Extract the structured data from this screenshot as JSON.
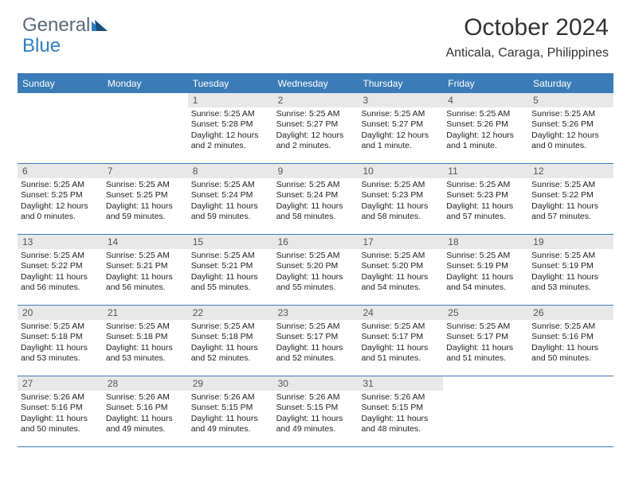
{
  "brand": {
    "part1": "General",
    "part2": "Blue"
  },
  "title": "October 2024",
  "location": "Anticala, Caraga, Philippines",
  "colors": {
    "header_bg": "#3b7cb8",
    "header_text": "#ffffff",
    "daynum_bg": "#e8e8e8",
    "body_text": "#222222",
    "border": "#3b7cb8",
    "logo_gray": "#5a6a7a",
    "logo_blue": "#2f7fbf"
  },
  "day_headers": [
    "Sunday",
    "Monday",
    "Tuesday",
    "Wednesday",
    "Thursday",
    "Friday",
    "Saturday"
  ],
  "weeks": [
    [
      {
        "n": "",
        "sr": "",
        "ss": "",
        "dl": ""
      },
      {
        "n": "",
        "sr": "",
        "ss": "",
        "dl": ""
      },
      {
        "n": "1",
        "sr": "Sunrise: 5:25 AM",
        "ss": "Sunset: 5:28 PM",
        "dl": "Daylight: 12 hours and 2 minutes."
      },
      {
        "n": "2",
        "sr": "Sunrise: 5:25 AM",
        "ss": "Sunset: 5:27 PM",
        "dl": "Daylight: 12 hours and 2 minutes."
      },
      {
        "n": "3",
        "sr": "Sunrise: 5:25 AM",
        "ss": "Sunset: 5:27 PM",
        "dl": "Daylight: 12 hours and 1 minute."
      },
      {
        "n": "4",
        "sr": "Sunrise: 5:25 AM",
        "ss": "Sunset: 5:26 PM",
        "dl": "Daylight: 12 hours and 1 minute."
      },
      {
        "n": "5",
        "sr": "Sunrise: 5:25 AM",
        "ss": "Sunset: 5:26 PM",
        "dl": "Daylight: 12 hours and 0 minutes."
      }
    ],
    [
      {
        "n": "6",
        "sr": "Sunrise: 5:25 AM",
        "ss": "Sunset: 5:25 PM",
        "dl": "Daylight: 12 hours and 0 minutes."
      },
      {
        "n": "7",
        "sr": "Sunrise: 5:25 AM",
        "ss": "Sunset: 5:25 PM",
        "dl": "Daylight: 11 hours and 59 minutes."
      },
      {
        "n": "8",
        "sr": "Sunrise: 5:25 AM",
        "ss": "Sunset: 5:24 PM",
        "dl": "Daylight: 11 hours and 59 minutes."
      },
      {
        "n": "9",
        "sr": "Sunrise: 5:25 AM",
        "ss": "Sunset: 5:24 PM",
        "dl": "Daylight: 11 hours and 58 minutes."
      },
      {
        "n": "10",
        "sr": "Sunrise: 5:25 AM",
        "ss": "Sunset: 5:23 PM",
        "dl": "Daylight: 11 hours and 58 minutes."
      },
      {
        "n": "11",
        "sr": "Sunrise: 5:25 AM",
        "ss": "Sunset: 5:23 PM",
        "dl": "Daylight: 11 hours and 57 minutes."
      },
      {
        "n": "12",
        "sr": "Sunrise: 5:25 AM",
        "ss": "Sunset: 5:22 PM",
        "dl": "Daylight: 11 hours and 57 minutes."
      }
    ],
    [
      {
        "n": "13",
        "sr": "Sunrise: 5:25 AM",
        "ss": "Sunset: 5:22 PM",
        "dl": "Daylight: 11 hours and 56 minutes."
      },
      {
        "n": "14",
        "sr": "Sunrise: 5:25 AM",
        "ss": "Sunset: 5:21 PM",
        "dl": "Daylight: 11 hours and 56 minutes."
      },
      {
        "n": "15",
        "sr": "Sunrise: 5:25 AM",
        "ss": "Sunset: 5:21 PM",
        "dl": "Daylight: 11 hours and 55 minutes."
      },
      {
        "n": "16",
        "sr": "Sunrise: 5:25 AM",
        "ss": "Sunset: 5:20 PM",
        "dl": "Daylight: 11 hours and 55 minutes."
      },
      {
        "n": "17",
        "sr": "Sunrise: 5:25 AM",
        "ss": "Sunset: 5:20 PM",
        "dl": "Daylight: 11 hours and 54 minutes."
      },
      {
        "n": "18",
        "sr": "Sunrise: 5:25 AM",
        "ss": "Sunset: 5:19 PM",
        "dl": "Daylight: 11 hours and 54 minutes."
      },
      {
        "n": "19",
        "sr": "Sunrise: 5:25 AM",
        "ss": "Sunset: 5:19 PM",
        "dl": "Daylight: 11 hours and 53 minutes."
      }
    ],
    [
      {
        "n": "20",
        "sr": "Sunrise: 5:25 AM",
        "ss": "Sunset: 5:18 PM",
        "dl": "Daylight: 11 hours and 53 minutes."
      },
      {
        "n": "21",
        "sr": "Sunrise: 5:25 AM",
        "ss": "Sunset: 5:18 PM",
        "dl": "Daylight: 11 hours and 53 minutes."
      },
      {
        "n": "22",
        "sr": "Sunrise: 5:25 AM",
        "ss": "Sunset: 5:18 PM",
        "dl": "Daylight: 11 hours and 52 minutes."
      },
      {
        "n": "23",
        "sr": "Sunrise: 5:25 AM",
        "ss": "Sunset: 5:17 PM",
        "dl": "Daylight: 11 hours and 52 minutes."
      },
      {
        "n": "24",
        "sr": "Sunrise: 5:25 AM",
        "ss": "Sunset: 5:17 PM",
        "dl": "Daylight: 11 hours and 51 minutes."
      },
      {
        "n": "25",
        "sr": "Sunrise: 5:25 AM",
        "ss": "Sunset: 5:17 PM",
        "dl": "Daylight: 11 hours and 51 minutes."
      },
      {
        "n": "26",
        "sr": "Sunrise: 5:25 AM",
        "ss": "Sunset: 5:16 PM",
        "dl": "Daylight: 11 hours and 50 minutes."
      }
    ],
    [
      {
        "n": "27",
        "sr": "Sunrise: 5:26 AM",
        "ss": "Sunset: 5:16 PM",
        "dl": "Daylight: 11 hours and 50 minutes."
      },
      {
        "n": "28",
        "sr": "Sunrise: 5:26 AM",
        "ss": "Sunset: 5:16 PM",
        "dl": "Daylight: 11 hours and 49 minutes."
      },
      {
        "n": "29",
        "sr": "Sunrise: 5:26 AM",
        "ss": "Sunset: 5:15 PM",
        "dl": "Daylight: 11 hours and 49 minutes."
      },
      {
        "n": "30",
        "sr": "Sunrise: 5:26 AM",
        "ss": "Sunset: 5:15 PM",
        "dl": "Daylight: 11 hours and 49 minutes."
      },
      {
        "n": "31",
        "sr": "Sunrise: 5:26 AM",
        "ss": "Sunset: 5:15 PM",
        "dl": "Daylight: 11 hours and 48 minutes."
      },
      {
        "n": "",
        "sr": "",
        "ss": "",
        "dl": ""
      },
      {
        "n": "",
        "sr": "",
        "ss": "",
        "dl": ""
      }
    ]
  ]
}
